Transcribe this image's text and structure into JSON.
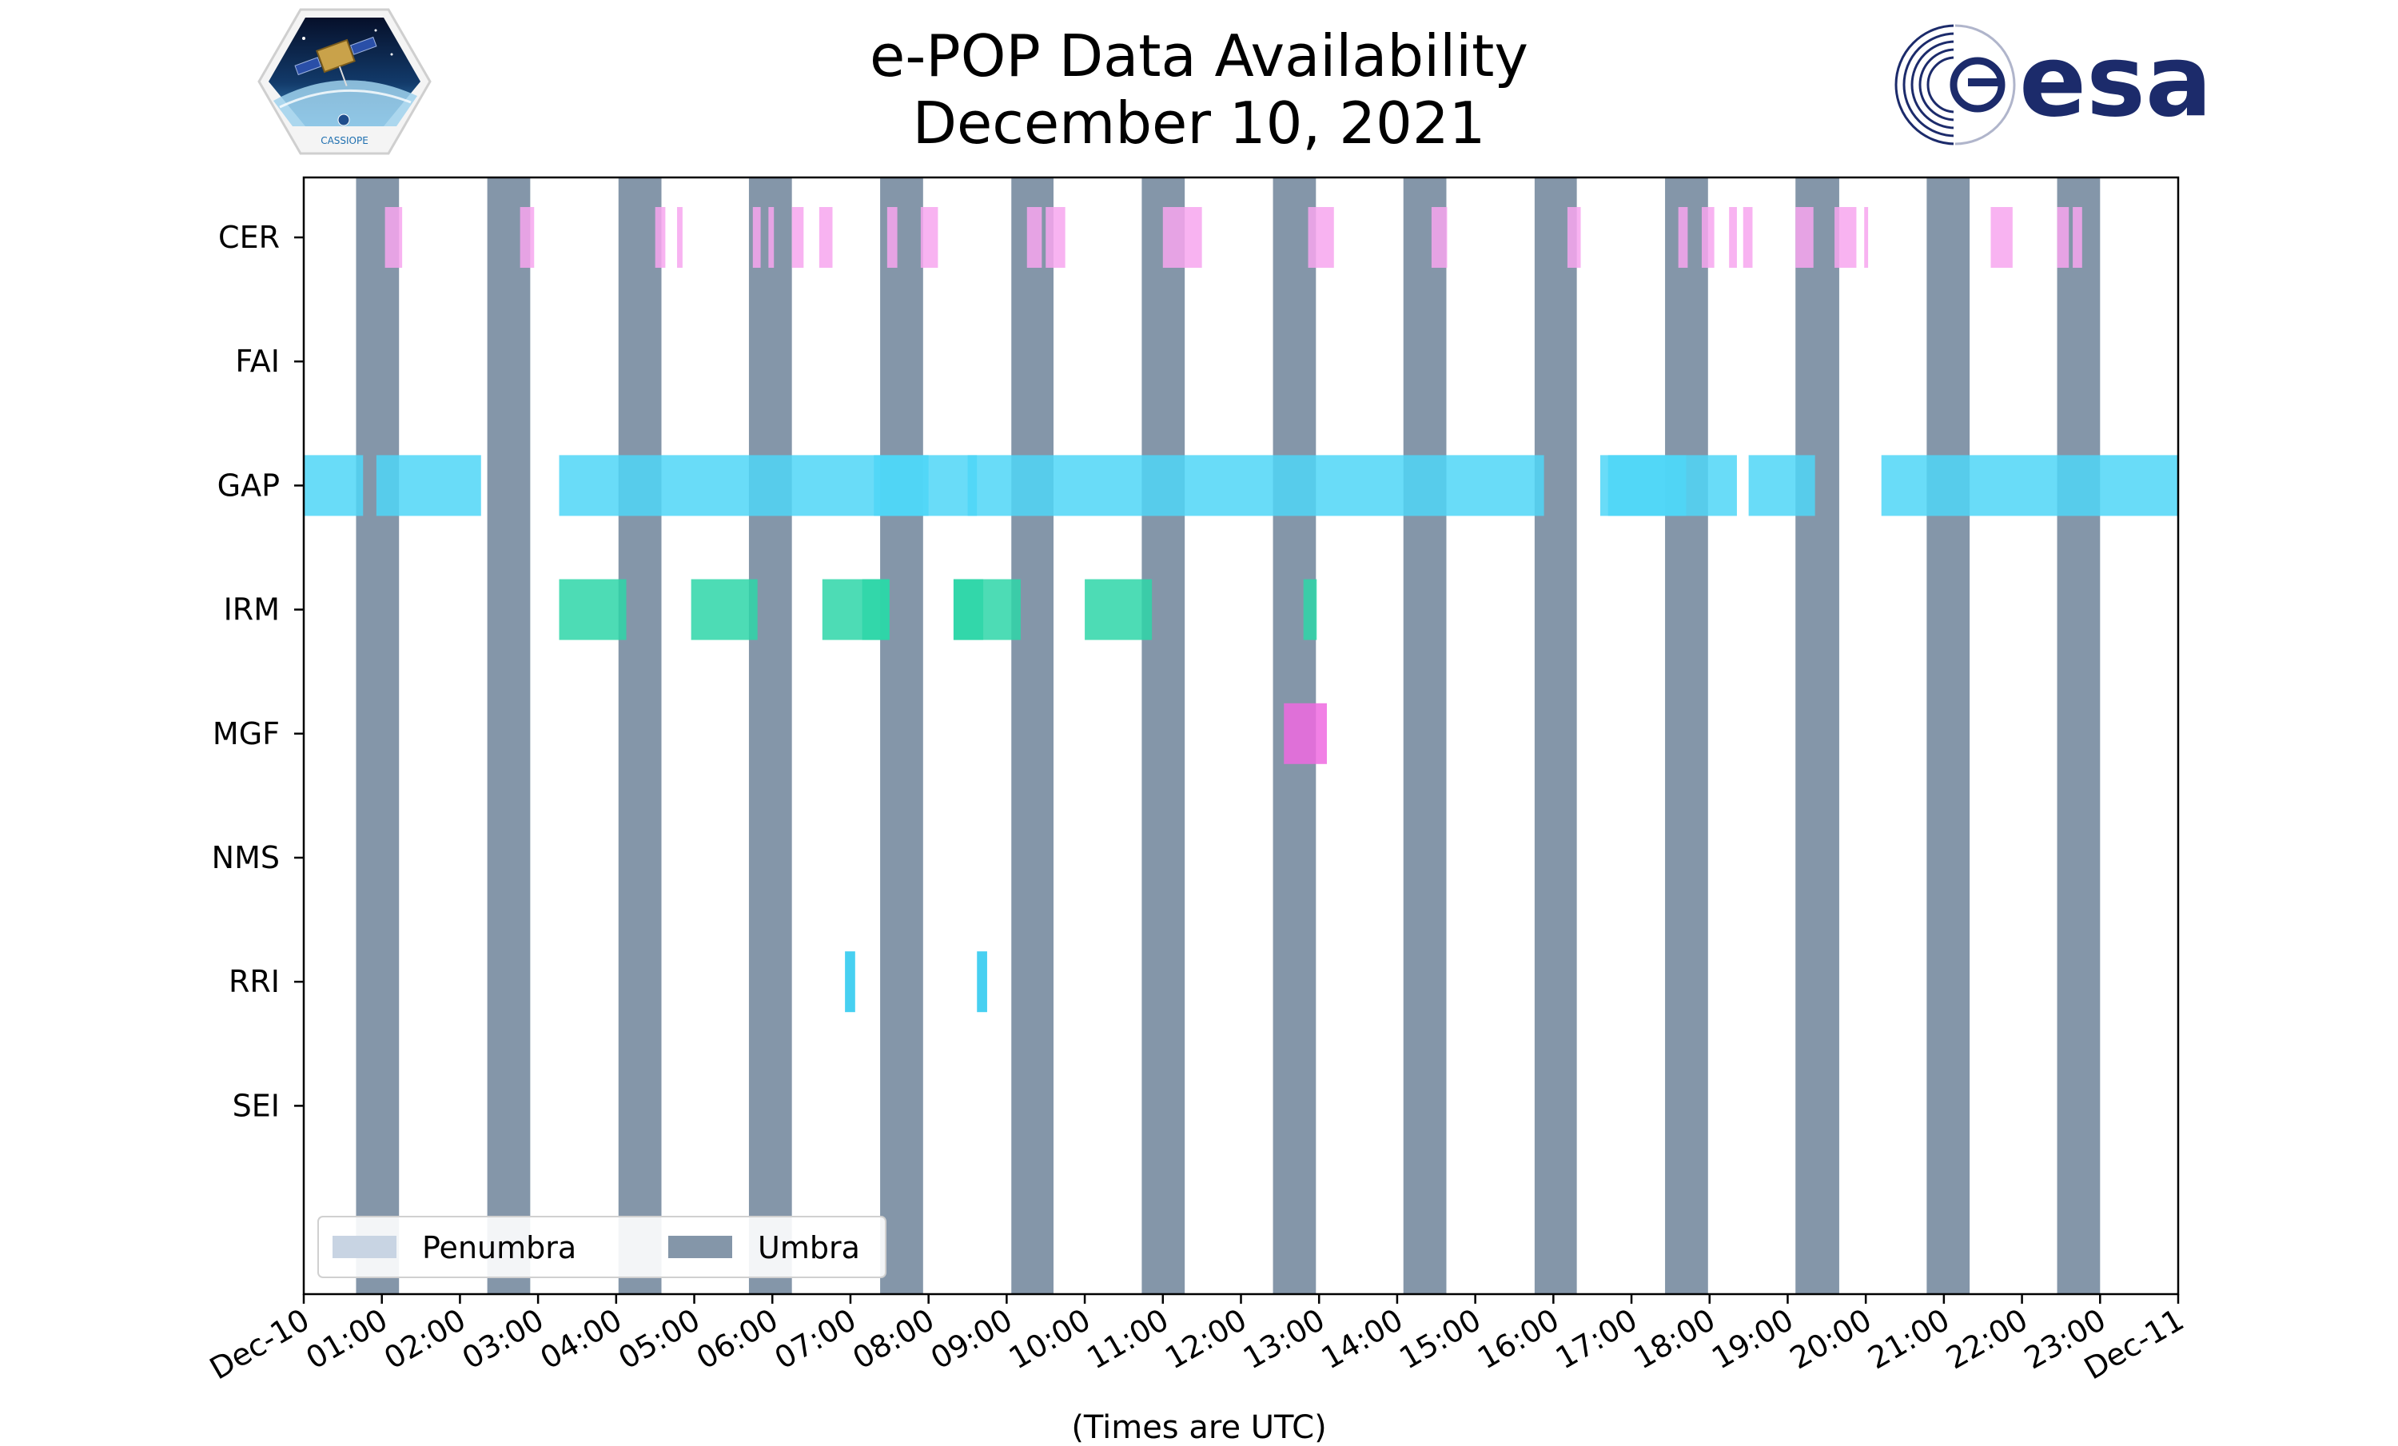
{
  "title": "e-POP Data Availability",
  "subtitle": "December 10, 2021",
  "logos": {
    "left_text": "CASSIOPE",
    "right_text": "esa",
    "right_color": "#1c2b6b"
  },
  "chart_data": {
    "type": "timeline",
    "xlabel": "(Times are UTC)",
    "x_unit": "hours since 2021-12-10 00:00 UTC",
    "xlim": [
      0,
      24
    ],
    "x_ticks": [
      "Dec-10",
      "01:00",
      "02:00",
      "03:00",
      "04:00",
      "05:00",
      "06:00",
      "07:00",
      "08:00",
      "09:00",
      "10:00",
      "11:00",
      "12:00",
      "13:00",
      "14:00",
      "15:00",
      "16:00",
      "17:00",
      "18:00",
      "19:00",
      "20:00",
      "21:00",
      "22:00",
      "23:00",
      "Dec-11"
    ],
    "categories": [
      "CER",
      "FAI",
      "GAP",
      "IRM",
      "MGF",
      "NMS",
      "RRI",
      "SEI"
    ],
    "legend": {
      "placement": "lower-left",
      "entries": [
        {
          "label": "Penumbra",
          "color": "#c8d4e3"
        },
        {
          "label": "Umbra",
          "color": "#8496a9"
        }
      ]
    },
    "umbra": [
      [
        0.67,
        1.22
      ],
      [
        2.35,
        2.9
      ],
      [
        4.03,
        4.58
      ],
      [
        5.7,
        6.25
      ],
      [
        7.38,
        7.93
      ],
      [
        9.06,
        9.6
      ],
      [
        10.73,
        11.28
      ],
      [
        12.41,
        12.96
      ],
      [
        14.08,
        14.63
      ],
      [
        15.76,
        16.3
      ],
      [
        17.43,
        17.98
      ],
      [
        19.1,
        19.66
      ],
      [
        20.78,
        21.33
      ],
      [
        22.45,
        23.0
      ]
    ],
    "series": [
      {
        "name": "CER",
        "color": "#f7a6ef",
        "intervals": [
          [
            1.04,
            1.26
          ],
          [
            2.77,
            2.95
          ],
          [
            4.5,
            4.63
          ],
          [
            4.78,
            4.85
          ],
          [
            5.75,
            5.85
          ],
          [
            5.95,
            6.02
          ],
          [
            6.25,
            6.4
          ],
          [
            6.6,
            6.77
          ],
          [
            7.47,
            7.6
          ],
          [
            7.9,
            8.12
          ],
          [
            9.26,
            9.45
          ],
          [
            9.5,
            9.75
          ],
          [
            11.0,
            11.5
          ],
          [
            12.86,
            13.19
          ],
          [
            14.44,
            14.64
          ],
          [
            16.18,
            16.35
          ],
          [
            17.6,
            17.72
          ],
          [
            17.9,
            18.06
          ],
          [
            18.25,
            18.35
          ],
          [
            18.43,
            18.55
          ],
          [
            19.1,
            19.33
          ],
          [
            19.6,
            19.88
          ],
          [
            19.98,
            20.03
          ],
          [
            21.6,
            21.88
          ],
          [
            22.45,
            22.6
          ],
          [
            22.65,
            22.77
          ]
        ]
      },
      {
        "name": "FAI",
        "color": "#8fd3f3",
        "intervals": []
      },
      {
        "name": "GAP",
        "color": "#4fd6f7",
        "intervals": [
          [
            0.0,
            0.76
          ],
          [
            0.93,
            2.27
          ],
          [
            3.27,
            8.62
          ],
          [
            7.3,
            8.0
          ],
          [
            8.5,
            15.88
          ],
          [
            16.6,
            18.35
          ],
          [
            16.7,
            17.7
          ],
          [
            18.5,
            19.35
          ],
          [
            20.2,
            24.0
          ]
        ]
      },
      {
        "name": "IRM",
        "color": "#2ed6a8",
        "intervals": [
          [
            3.27,
            4.13
          ],
          [
            4.96,
            5.81
          ],
          [
            6.64,
            7.5
          ],
          [
            7.15,
            7.5
          ],
          [
            8.32,
            9.18
          ],
          [
            8.32,
            8.7
          ],
          [
            10.0,
            10.86
          ],
          [
            12.8,
            12.97
          ]
        ]
      },
      {
        "name": "MGF",
        "color": "#ef6ae0",
        "intervals": [
          [
            12.55,
            13.1
          ]
        ]
      },
      {
        "name": "NMS",
        "color": "#8fd3f3",
        "intervals": []
      },
      {
        "name": "RRI",
        "color": "#27c8ee",
        "intervals": [
          [
            6.93,
            7.06
          ],
          [
            8.62,
            8.75
          ]
        ]
      },
      {
        "name": "SEI",
        "color": "#8fd3f3",
        "intervals": []
      }
    ]
  }
}
